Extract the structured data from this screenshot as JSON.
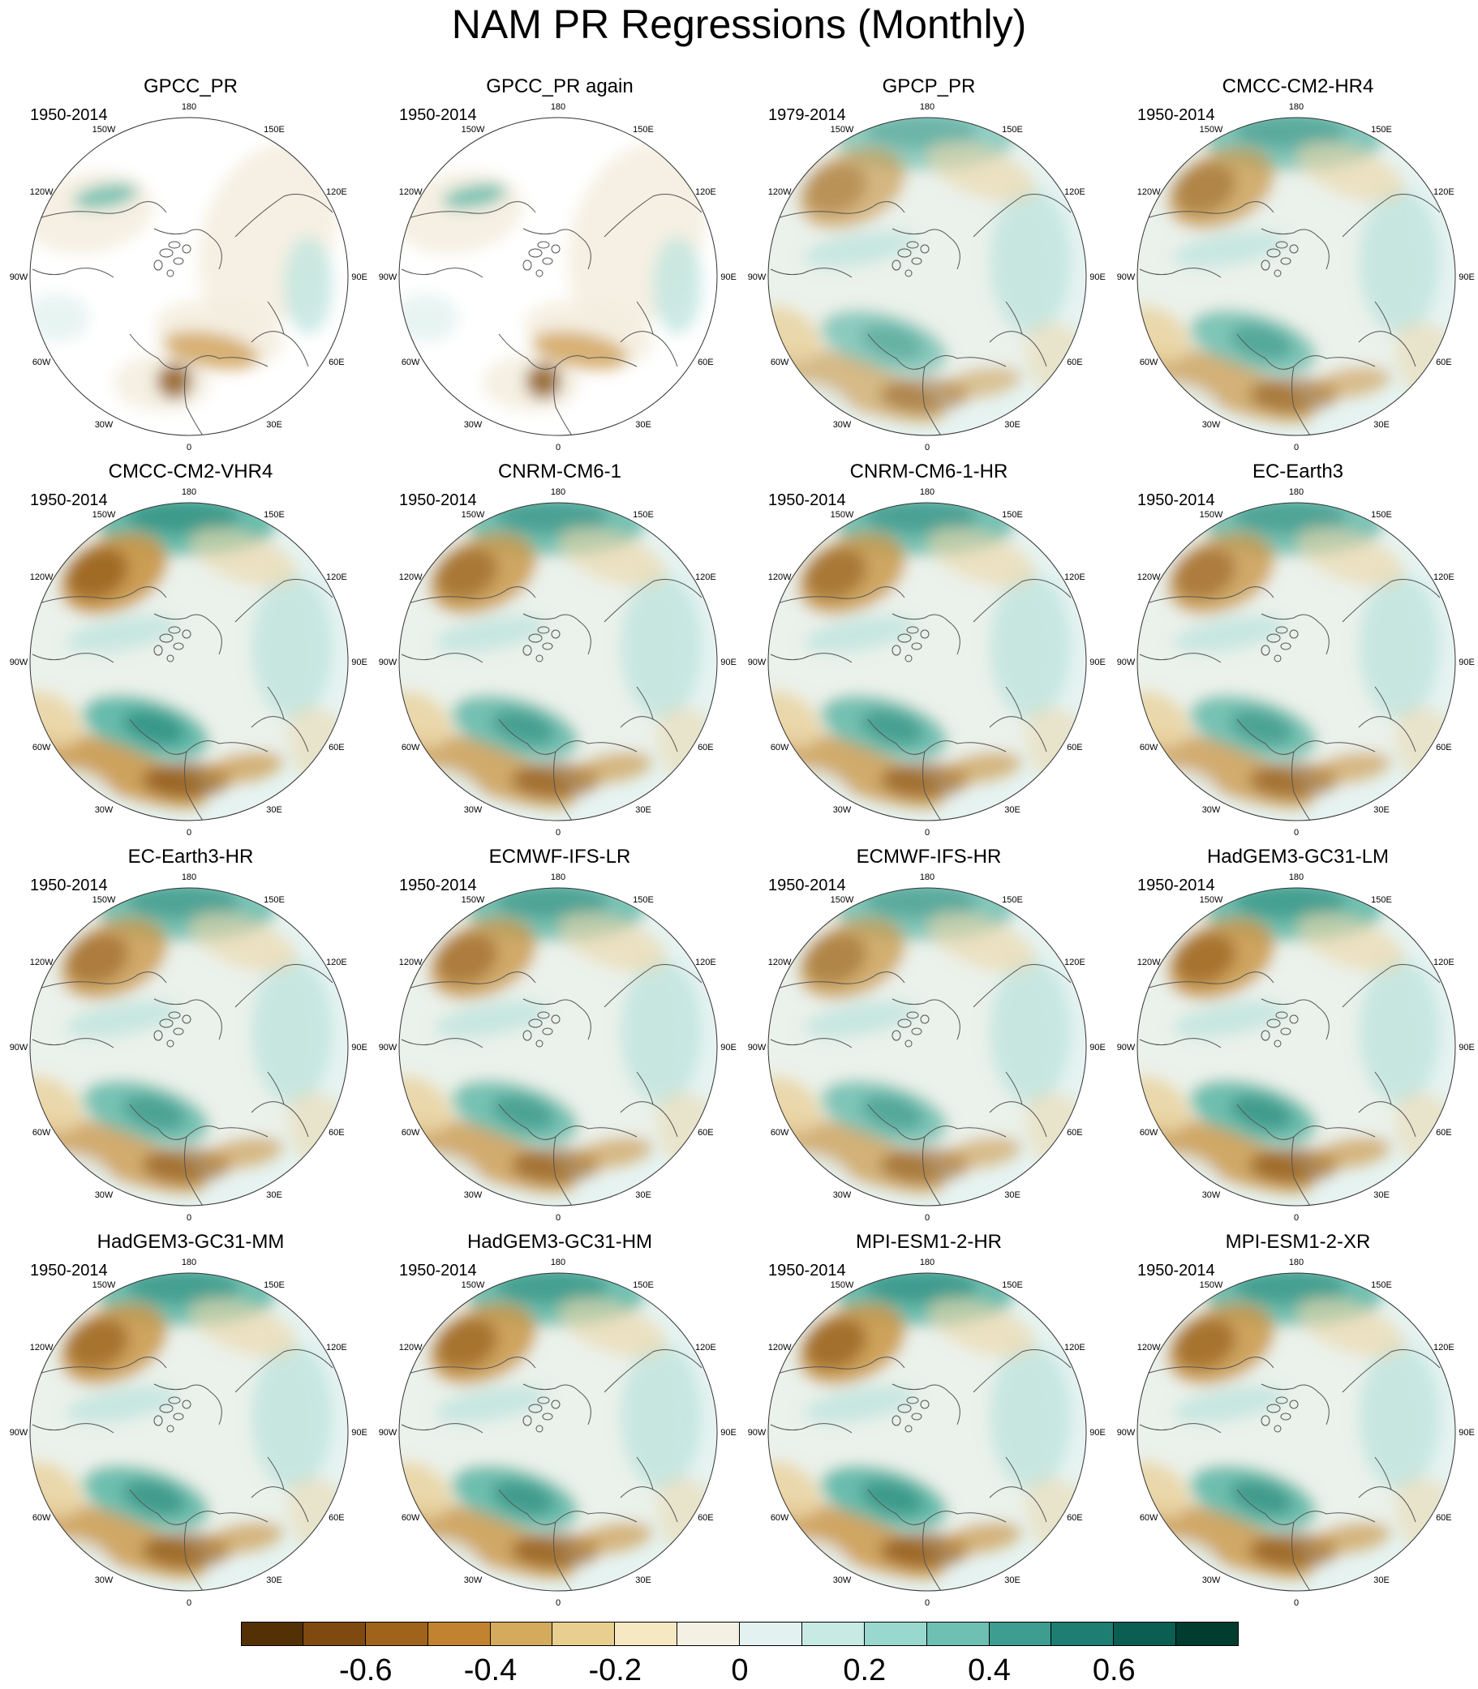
{
  "title": "NAM PR Regressions (Monthly)",
  "lon_labels": [
    "180",
    "150E",
    "120E",
    "90E",
    "60E",
    "30E",
    "0",
    "30W",
    "60W",
    "90W",
    "120W",
    "150W"
  ],
  "panels": [
    {
      "title": "GPCC_PR",
      "years": "1950-2014",
      "variant": "gpcc",
      "intensity": 0.55
    },
    {
      "title": "GPCC_PR again",
      "years": "1950-2014",
      "variant": "gpcc",
      "intensity": 0.55
    },
    {
      "title": "GPCP_PR",
      "years": "1979-2014",
      "variant": "full",
      "intensity": 0.55
    },
    {
      "title": "CMCC-CM2-HR4",
      "years": "1950-2014",
      "variant": "full",
      "intensity": 0.7
    },
    {
      "title": "CMCC-CM2-VHR4",
      "years": "1950-2014",
      "variant": "full",
      "intensity": 1.0
    },
    {
      "title": "CNRM-CM6-1",
      "years": "1950-2014",
      "variant": "full",
      "intensity": 0.85
    },
    {
      "title": "CNRM-CM6-1-HR",
      "years": "1950-2014",
      "variant": "full",
      "intensity": 0.85
    },
    {
      "title": "EC-Earth3",
      "years": "1950-2014",
      "variant": "full",
      "intensity": 0.8
    },
    {
      "title": "EC-Earth3-HR",
      "years": "1950-2014",
      "variant": "full",
      "intensity": 0.8
    },
    {
      "title": "ECMWF-IFS-LR",
      "years": "1950-2014",
      "variant": "full",
      "intensity": 0.8
    },
    {
      "title": "ECMWF-IFS-HR",
      "years": "1950-2014",
      "variant": "full",
      "intensity": 0.7
    },
    {
      "title": "HadGEM3-GC31-LM",
      "years": "1950-2014",
      "variant": "full",
      "intensity": 0.9
    },
    {
      "title": "HadGEM3-GC31-MM",
      "years": "1950-2014",
      "variant": "full",
      "intensity": 0.9
    },
    {
      "title": "HadGEM3-GC31-HM",
      "years": "1950-2014",
      "variant": "full",
      "intensity": 0.9
    },
    {
      "title": "MPI-ESM1-2-HR",
      "years": "1950-2014",
      "variant": "full",
      "intensity": 0.95
    },
    {
      "title": "MPI-ESM1-2-XR",
      "years": "1950-2014",
      "variant": "full",
      "intensity": 0.9
    }
  ],
  "colorbar": {
    "colors": [
      "#543005",
      "#7f4a0f",
      "#a0631b",
      "#c1832f",
      "#d4ab5c",
      "#e8cf90",
      "#f6e8c3",
      "#f5f0e4",
      "#e3f2f0",
      "#c7eae5",
      "#99d8ce",
      "#6ec0b2",
      "#3d9d90",
      "#1e7e72",
      "#0a5e52",
      "#003c30"
    ],
    "tick_labels": [
      "-0.6",
      "-0.4",
      "-0.2",
      "0",
      "0.2",
      "0.4",
      "0.6"
    ],
    "tick_positions": [
      2,
      4,
      6,
      8,
      10,
      12,
      14
    ]
  },
  "map_colors": {
    "ocean_base": "#e6f3f1",
    "land_base": "#f4eee0",
    "brown_strong": "#8a5313",
    "brown_mid": "#c99544",
    "brown_light": "#ebd6a6",
    "teal_strong": "#1b7f71",
    "teal_mid": "#5fb8a8",
    "teal_light": "#bfe5de",
    "coast": "#555555"
  }
}
